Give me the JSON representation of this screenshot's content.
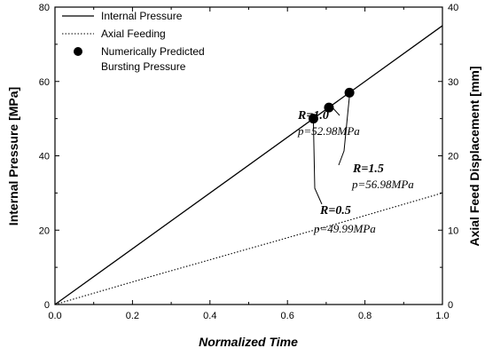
{
  "chart_data": {
    "type": "line",
    "title": "",
    "xlabel": "Normalized Time",
    "ylabel_left": "Internal Pressure [MPa]",
    "ylabel_right": "Axial Feed Displacement [mm]",
    "xlim": [
      0.0,
      1.0
    ],
    "ylim_left": [
      0,
      80
    ],
    "ylim_right": [
      0,
      40
    ],
    "x_ticks": [
      "0.0",
      "0.2",
      "0.4",
      "0.6",
      "0.8",
      "1.0"
    ],
    "y_left_ticks": [
      "0",
      "20",
      "40",
      "60",
      "80"
    ],
    "y_right_ticks": [
      "0",
      "10",
      "20",
      "30",
      "40"
    ],
    "grid": false,
    "legend_position": "top-left",
    "series": [
      {
        "name": "Internal Pressure",
        "axis": "left",
        "style": "solid",
        "x": [
          0.0,
          1.0
        ],
        "y": [
          0,
          75
        ]
      },
      {
        "name": "Axial Feeding",
        "axis": "right",
        "style": "dotted",
        "x": [
          0.0,
          0.25,
          0.5,
          0.75,
          1.0
        ],
        "y": [
          0,
          3.8,
          7.5,
          11.2,
          15.0
        ]
      },
      {
        "name": "Numerically Predicted Bursting Pressure",
        "axis": "left",
        "style": "marker",
        "x": [
          0.667,
          0.707,
          0.76
        ],
        "y": [
          49.99,
          52.98,
          56.98
        ]
      }
    ],
    "annotations": [
      {
        "r": "R=1.0",
        "p": "p=52.98MPa"
      },
      {
        "r": "R=1.5",
        "p": "p=56.98MPa"
      },
      {
        "r": "R=0.5",
        "p": "p=49.99MPa"
      }
    ]
  }
}
